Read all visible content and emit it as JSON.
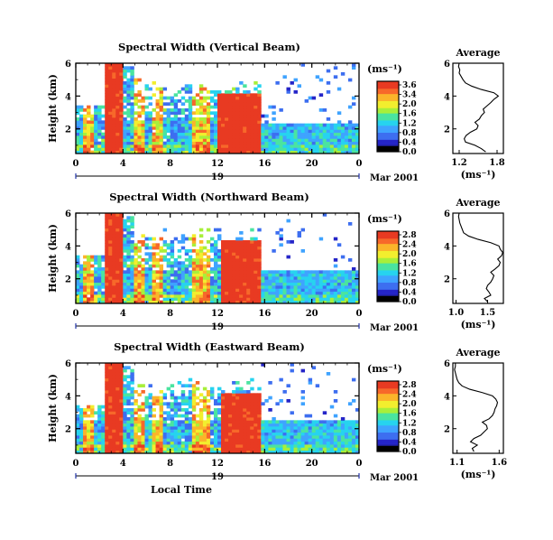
{
  "chart_data": [
    {
      "type": "heatmap",
      "title": "Spectral Width (Vertical Beam)",
      "ylabel": "Height (km)",
      "xlabel": "",
      "xlim": [
        0,
        24
      ],
      "ylim": [
        0.5,
        6
      ],
      "xticks": [
        "0",
        "4",
        "8",
        "12",
        "16",
        "20",
        "0"
      ],
      "yticks": [
        "2",
        "4",
        "6"
      ],
      "date_day": "19",
      "date_label": "Mar 2001",
      "colorbar": {
        "unit": "(ms⁻¹)",
        "ticks": [
          "3.6",
          "3.4",
          "2.0",
          "1.6",
          "1.2",
          "0.8",
          "0.4",
          "0.0"
        ]
      },
      "features": [
        {
          "x_start": 2.6,
          "x_end": 4.0,
          "y_top": 6.0,
          "level": "high"
        },
        {
          "x_start": 12.0,
          "x_end": 15.6,
          "y_top": 4.2,
          "level": "high"
        },
        {
          "x_start": 15.6,
          "x_end": 24.0,
          "y_top": 2.4,
          "level": "low"
        }
      ],
      "average": {
        "title": "Average",
        "xlabel": "(ms⁻¹)",
        "xticks": [
          "1.2",
          "1.8"
        ],
        "yticks": [
          "2",
          "4",
          "6"
        ],
        "xlim": [
          1.1,
          1.9
        ],
        "height": [
          0.6,
          0.8,
          1.0,
          1.2,
          1.4,
          1.6,
          1.8,
          2.0,
          2.2,
          2.4,
          2.6,
          2.8,
          3.0,
          3.2,
          3.4,
          3.6,
          3.8,
          4.0,
          4.2,
          4.4,
          4.6,
          4.8,
          5.0,
          5.2,
          5.4,
          5.6,
          5.8,
          6.0
        ],
        "value": [
          1.62,
          1.55,
          1.45,
          1.3,
          1.28,
          1.31,
          1.38,
          1.48,
          1.5,
          1.45,
          1.52,
          1.55,
          1.6,
          1.58,
          1.64,
          1.7,
          1.75,
          1.82,
          1.75,
          1.55,
          1.4,
          1.3,
          1.26,
          1.23,
          1.2,
          1.21,
          1.19,
          1.2
        ]
      }
    },
    {
      "type": "heatmap",
      "title": "Spectral Width (Northward Beam)",
      "ylabel": "Height (km)",
      "xlabel": "",
      "xlim": [
        0,
        24
      ],
      "ylim": [
        0.5,
        6
      ],
      "xticks": [
        "0",
        "4",
        "8",
        "12",
        "16",
        "20",
        "0"
      ],
      "yticks": [
        "2",
        "4",
        "6"
      ],
      "date_day": "19",
      "date_label": "Mar 2001",
      "colorbar": {
        "unit": "(ms⁻¹)",
        "ticks": [
          "2.8",
          "2.4",
          "2.0",
          "1.6",
          "1.2",
          "0.8",
          "0.4",
          "0.0"
        ]
      },
      "features": [
        {
          "x_start": 2.6,
          "x_end": 4.0,
          "y_top": 6.0,
          "level": "high"
        },
        {
          "x_start": 12.2,
          "x_end": 15.6,
          "y_top": 4.3,
          "level": "high"
        },
        {
          "x_start": 15.6,
          "x_end": 24.0,
          "y_top": 2.6,
          "level": "low"
        }
      ],
      "average": {
        "title": "Average",
        "xlabel": "(ms⁻¹)",
        "xticks": [
          "1.0",
          "1.5"
        ],
        "yticks": [
          "2",
          "4",
          "6"
        ],
        "xlim": [
          0.95,
          1.75
        ],
        "height": [
          0.6,
          0.8,
          1.0,
          1.2,
          1.4,
          1.6,
          1.8,
          2.0,
          2.2,
          2.4,
          2.6,
          2.8,
          3.0,
          3.2,
          3.4,
          3.6,
          3.8,
          4.0,
          4.2,
          4.4,
          4.6,
          4.8,
          5.0,
          5.2,
          5.4,
          5.6,
          5.8,
          6.0
        ],
        "value": [
          1.5,
          1.45,
          1.55,
          1.52,
          1.48,
          1.5,
          1.55,
          1.58,
          1.6,
          1.55,
          1.62,
          1.68,
          1.7,
          1.66,
          1.72,
          1.74,
          1.7,
          1.68,
          1.55,
          1.35,
          1.2,
          1.12,
          1.1,
          1.08,
          1.06,
          1.05,
          1.04,
          1.05
        ]
      }
    },
    {
      "type": "heatmap",
      "title": "Spectral Width (Eastward Beam)",
      "ylabel": "Height (km)",
      "xlabel": "Local Time",
      "xlim": [
        0,
        24
      ],
      "ylim": [
        0.5,
        6
      ],
      "xticks": [
        "0",
        "4",
        "8",
        "12",
        "16",
        "20",
        "0"
      ],
      "yticks": [
        "2",
        "4",
        "6"
      ],
      "date_day": "19",
      "date_label": "Mar 2001",
      "colorbar": {
        "unit": "(ms⁻¹)",
        "ticks": [
          "2.8",
          "2.4",
          "2.0",
          "1.6",
          "1.2",
          "0.8",
          "0.4",
          "0.0"
        ]
      },
      "features": [
        {
          "x_start": 2.6,
          "x_end": 4.0,
          "y_top": 6.0,
          "level": "high"
        },
        {
          "x_start": 12.3,
          "x_end": 15.6,
          "y_top": 4.2,
          "level": "high"
        },
        {
          "x_start": 15.6,
          "x_end": 24.0,
          "y_top": 2.5,
          "level": "low"
        }
      ],
      "average": {
        "title": "Average",
        "xlabel": "(ms⁻¹)",
        "xticks": [
          "1.1",
          "1.6"
        ],
        "yticks": [
          "2",
          "4",
          "6"
        ],
        "xlim": [
          1.05,
          1.65
        ],
        "height": [
          0.6,
          0.8,
          1.0,
          1.2,
          1.4,
          1.6,
          1.8,
          2.0,
          2.2,
          2.4,
          2.6,
          2.8,
          3.0,
          3.2,
          3.4,
          3.6,
          3.8,
          4.0,
          4.2,
          4.4,
          4.6,
          4.8,
          5.0,
          5.2,
          5.4,
          5.6,
          5.8,
          6.0
        ],
        "value": [
          1.3,
          1.28,
          1.34,
          1.26,
          1.3,
          1.38,
          1.42,
          1.46,
          1.45,
          1.4,
          1.48,
          1.52,
          1.54,
          1.55,
          1.57,
          1.58,
          1.56,
          1.52,
          1.4,
          1.25,
          1.16,
          1.12,
          1.1,
          1.09,
          1.08,
          1.07,
          1.08,
          1.08
        ]
      }
    }
  ]
}
